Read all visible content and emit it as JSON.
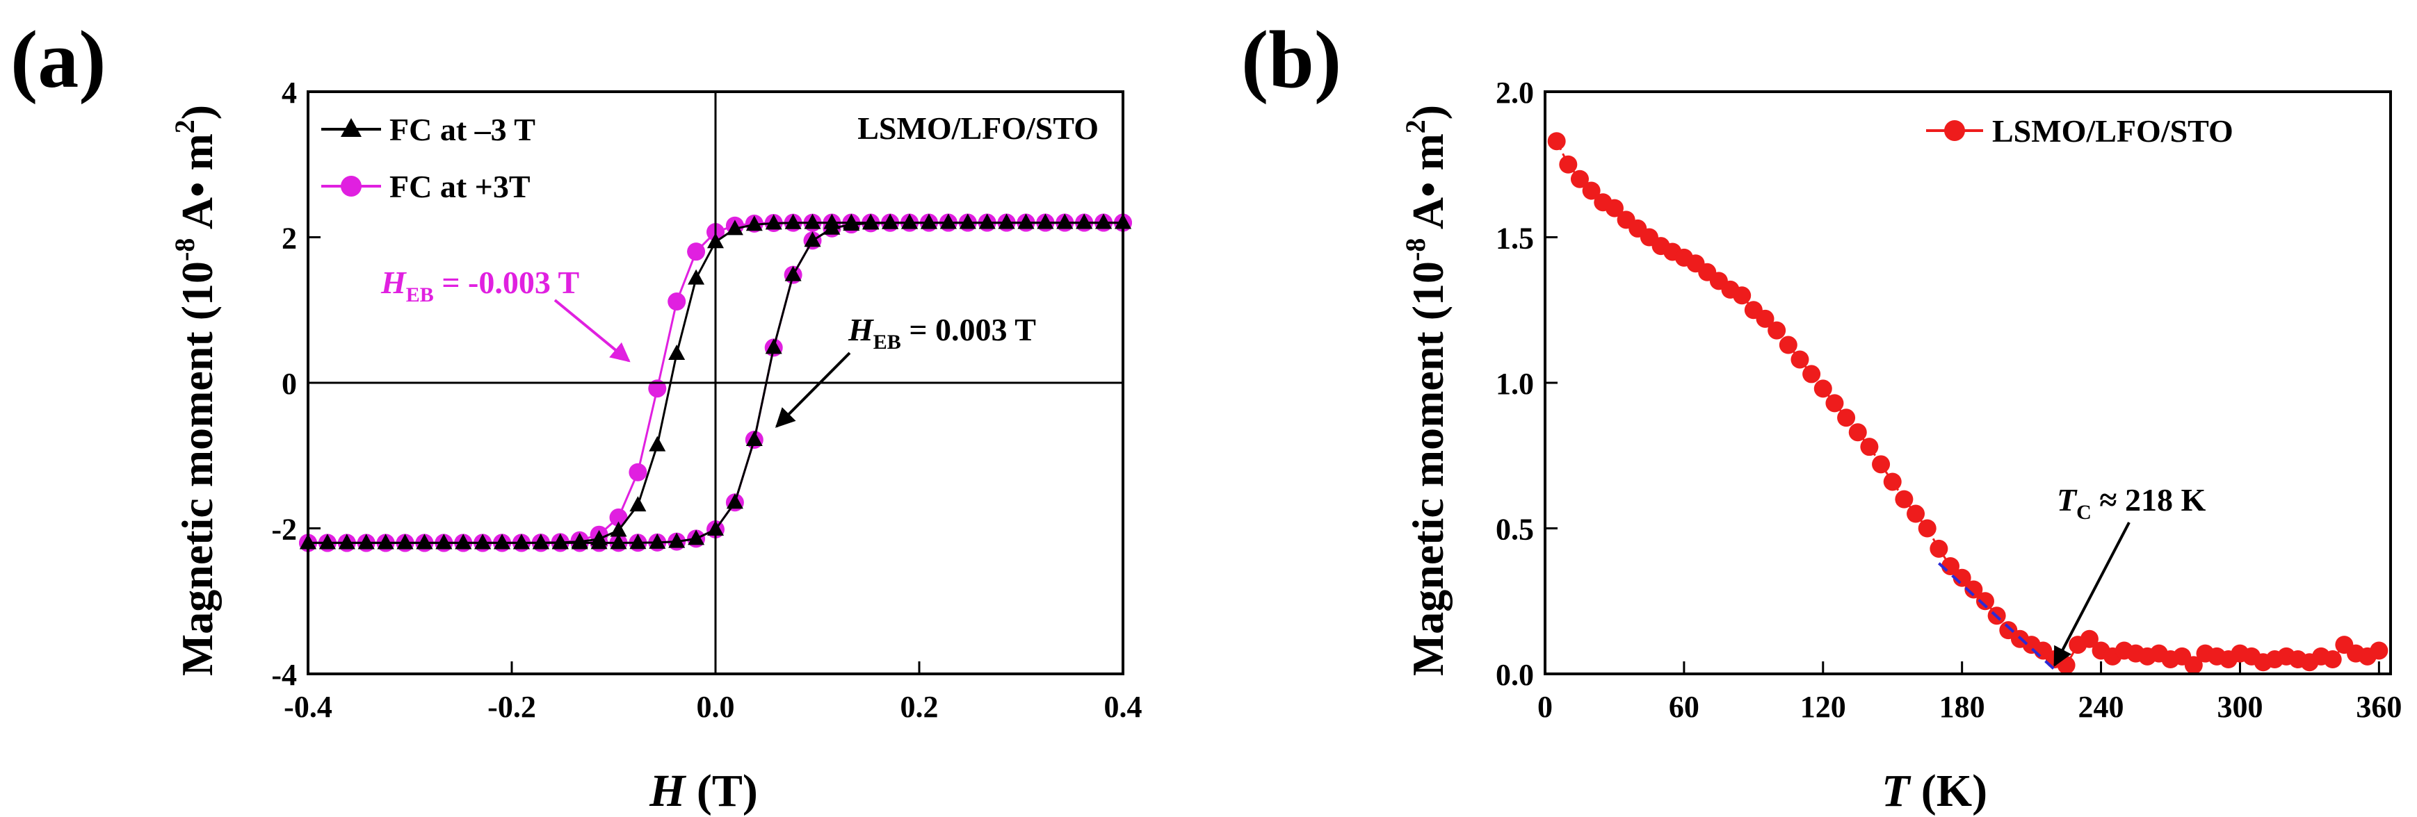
{
  "chart_data": [
    {
      "panel_label": "(a)",
      "type": "scatter",
      "xlabel_italic": "H",
      "xlabel_rest": " (T)",
      "ylabel_main": "Magnetic moment (10",
      "ylabel_exp": "-8",
      "ylabel_unit": " A",
      "ylabel_dot": "•",
      "ylabel_m": " m",
      "ylabel_m_exp": "2",
      "ylabel_close": ")",
      "xlim": [
        -0.4,
        0.4
      ],
      "ylim": [
        -4,
        4
      ],
      "xticks": [
        -0.4,
        -0.2,
        0.0,
        0.2,
        0.4
      ],
      "xtick_labels": [
        "-0.4",
        "-0.2",
        "0.0",
        "0.2",
        "0.4"
      ],
      "yticks": [
        -4,
        -2,
        0,
        2,
        4
      ],
      "ytick_labels": [
        "-4",
        "-2",
        "0",
        "2",
        "4"
      ],
      "sample_label": "LSMO/LFO/STO",
      "legend": [
        {
          "name": "FC at –3 T",
          "color": "#000000",
          "marker": "triangle"
        },
        {
          "name": "FC at +3T",
          "color": "#e020e0",
          "marker": "circle"
        }
      ],
      "loop_model": {
        "saturation": 2.2,
        "width_T": 0.032,
        "coercive_T": [
          0.047,
          0.053
        ],
        "exchange_bias_T": [
          0.003,
          -0.003
        ],
        "points_per_branch": 42
      },
      "annotations": [
        {
          "italic": "H",
          "sub": "EB",
          "rest": " = -0.003 T",
          "color": "#e020e0",
          "arrow_to": [
            -0.085,
            0.3
          ]
        },
        {
          "italic": "H",
          "sub": "EB",
          "rest": " = 0.003 T",
          "color": "#000000",
          "arrow_to": [
            0.06,
            -0.6
          ]
        }
      ]
    },
    {
      "panel_label": "(b)",
      "type": "scatter",
      "xlabel_italic": "T",
      "xlabel_rest": " (K)",
      "ylabel_main": "Magnetic moment (10",
      "ylabel_exp": "-8",
      "ylabel_unit": " A",
      "ylabel_dot": "•",
      "ylabel_m": " m",
      "ylabel_m_exp": "2",
      "ylabel_close": ")",
      "xlim": [
        0,
        365
      ],
      "ylim": [
        0,
        2.0
      ],
      "xticks": [
        0,
        60,
        120,
        180,
        240,
        300,
        360
      ],
      "xtick_labels": [
        "0",
        "60",
        "120",
        "180",
        "240",
        "300",
        "360"
      ],
      "yticks": [
        0,
        0.5,
        1.0,
        1.5,
        2.0
      ],
      "ytick_labels": [
        "0.0",
        "0.5",
        "1.0",
        "1.5",
        "2.0"
      ],
      "legend": [
        {
          "name": "LSMO/LFO/STO",
          "color": "#ee1c1c",
          "marker": "circle"
        }
      ],
      "series": [
        {
          "name": "LSMO/LFO/STO",
          "color": "#ee1c1c",
          "x": [
            5,
            10,
            15,
            20,
            25,
            30,
            35,
            40,
            45,
            50,
            55,
            60,
            65,
            70,
            75,
            80,
            85,
            90,
            95,
            100,
            105,
            110,
            115,
            120,
            125,
            130,
            135,
            140,
            145,
            150,
            155,
            160,
            165,
            170,
            175,
            180,
            185,
            190,
            195,
            200,
            205,
            210,
            215,
            220,
            225,
            230,
            235,
            240,
            245,
            250,
            255,
            260,
            265,
            270,
            275,
            280,
            285,
            290,
            295,
            300,
            305,
            310,
            315,
            320,
            325,
            330,
            335,
            340,
            345,
            350,
            355,
            360
          ],
          "y": [
            1.83,
            1.75,
            1.7,
            1.66,
            1.62,
            1.6,
            1.56,
            1.53,
            1.5,
            1.47,
            1.45,
            1.43,
            1.41,
            1.38,
            1.35,
            1.32,
            1.3,
            1.25,
            1.22,
            1.18,
            1.13,
            1.08,
            1.03,
            0.98,
            0.93,
            0.88,
            0.83,
            0.78,
            0.72,
            0.66,
            0.6,
            0.55,
            0.5,
            0.43,
            0.37,
            0.33,
            0.29,
            0.25,
            0.2,
            0.15,
            0.12,
            0.1,
            0.08,
            0.05,
            0.03,
            0.1,
            0.12,
            0.08,
            0.06,
            0.08,
            0.07,
            0.06,
            0.07,
            0.05,
            0.06,
            0.03,
            0.07,
            0.06,
            0.05,
            0.07,
            0.06,
            0.04,
            0.05,
            0.06,
            0.05,
            0.04,
            0.06,
            0.05,
            0.1,
            0.07,
            0.06,
            0.08
          ]
        }
      ],
      "fit_line": {
        "x": [
          170,
          222
        ],
        "y": [
          0.38,
          0.0
        ],
        "color": "#2b2bd6"
      },
      "tc_annotation": {
        "italic": "T",
        "sub": "C",
        "rest": " ≈ 218 K",
        "arrow_to": [
          220,
          0.03
        ]
      }
    }
  ]
}
